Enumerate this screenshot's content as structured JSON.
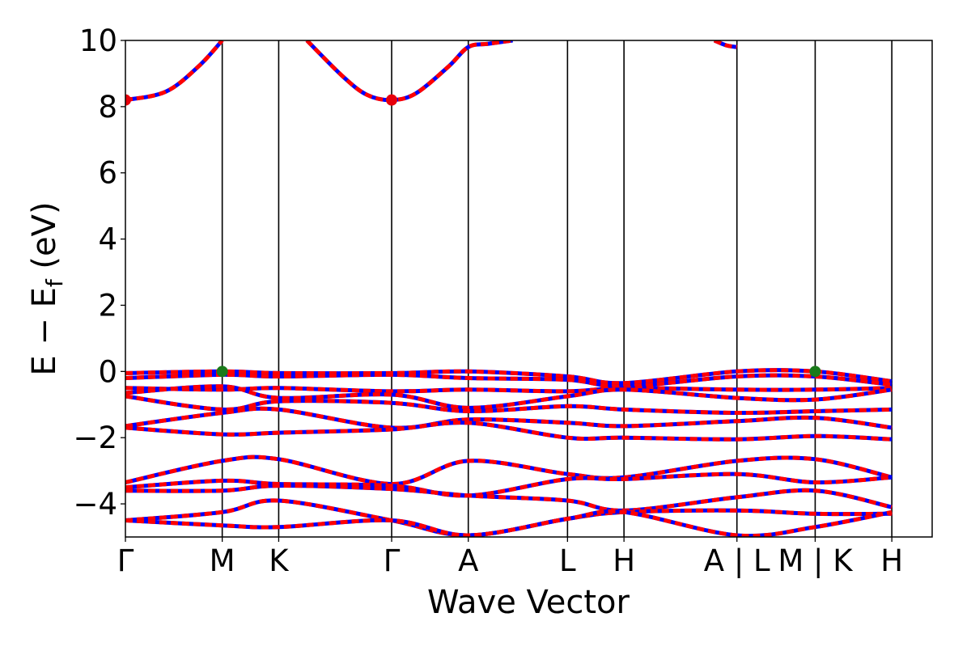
{
  "chart_data": {
    "type": "line",
    "title": "",
    "xlabel": "Wave Vector",
    "ylabel": "E − E_f (eV)",
    "ylabel_main": "E − E",
    "ylabel_sub": "f",
    "ylabel_unit": " (eV)",
    "ylim": [
      -5,
      10
    ],
    "yticks": [
      -4,
      -2,
      0,
      2,
      4,
      6,
      8,
      10
    ],
    "ytick_labels": [
      "−4",
      "−2",
      "0",
      "2",
      "4",
      "6",
      "8",
      "10"
    ],
    "x_range": [
      0,
      1
    ],
    "k_points": [
      {
        "x": 0.0,
        "label": "Γ"
      },
      {
        "x": 0.12,
        "label": "M"
      },
      {
        "x": 0.19,
        "label": "K"
      },
      {
        "x": 0.33,
        "label": "Γ"
      },
      {
        "x": 0.425,
        "label": "A"
      },
      {
        "x": 0.548,
        "label": "L"
      },
      {
        "x": 0.618,
        "label": "H"
      },
      {
        "x": 0.758,
        "label": "A | L"
      },
      {
        "x": 0.855,
        "label": "M | K"
      },
      {
        "x": 0.95,
        "label": "H"
      }
    ],
    "grid": false,
    "series_style": [
      {
        "color": "#ff0000",
        "dash": "solid"
      },
      {
        "color": "#0000ff",
        "dash": "dotted"
      }
    ],
    "bands": [
      {
        "points": [
          [
            0.0,
            8.2
          ],
          [
            0.05,
            8.45
          ],
          [
            0.09,
            9.2
          ],
          [
            0.12,
            10.0
          ]
        ]
      },
      {
        "points": [
          [
            0.225,
            10.0
          ],
          [
            0.27,
            8.9
          ],
          [
            0.3,
            8.35
          ],
          [
            0.33,
            8.2
          ],
          [
            0.36,
            8.4
          ],
          [
            0.4,
            9.2
          ],
          [
            0.425,
            9.8
          ],
          [
            0.45,
            9.9
          ],
          [
            0.48,
            10.0
          ]
        ]
      },
      {
        "points": [
          [
            0.73,
            10.0
          ],
          [
            0.745,
            9.85
          ],
          [
            0.758,
            9.8
          ]
        ]
      },
      {
        "points": [
          [
            0.0,
            -0.05
          ],
          [
            0.12,
            0.0
          ],
          [
            0.19,
            -0.05
          ],
          [
            0.33,
            -0.05
          ],
          [
            0.425,
            0.0
          ],
          [
            0.548,
            -0.15
          ],
          [
            0.618,
            -0.35
          ],
          [
            0.758,
            0.0
          ],
          [
            0.855,
            0.0
          ],
          [
            0.95,
            -0.3
          ]
        ]
      },
      {
        "points": [
          [
            0.0,
            -0.2
          ],
          [
            0.12,
            -0.1
          ],
          [
            0.19,
            -0.15
          ],
          [
            0.33,
            -0.1
          ],
          [
            0.425,
            -0.2
          ],
          [
            0.548,
            -0.25
          ],
          [
            0.618,
            -0.45
          ],
          [
            0.758,
            -0.15
          ],
          [
            0.855,
            -0.15
          ],
          [
            0.95,
            -0.4
          ]
        ]
      },
      {
        "points": [
          [
            0.0,
            -0.5
          ],
          [
            0.12,
            -0.55
          ],
          [
            0.19,
            -0.5
          ],
          [
            0.33,
            -0.6
          ],
          [
            0.425,
            -0.55
          ],
          [
            0.548,
            -0.6
          ],
          [
            0.618,
            -0.5
          ],
          [
            0.758,
            -0.55
          ],
          [
            0.855,
            -0.55
          ],
          [
            0.95,
            -0.5
          ]
        ]
      },
      {
        "points": [
          [
            0.0,
            -0.65
          ],
          [
            0.12,
            -0.45
          ],
          [
            0.19,
            -0.8
          ],
          [
            0.33,
            -0.7
          ],
          [
            0.425,
            -1.1
          ],
          [
            0.548,
            -0.75
          ],
          [
            0.618,
            -0.55
          ],
          [
            0.758,
            -0.8
          ],
          [
            0.855,
            -0.85
          ],
          [
            0.95,
            -0.55
          ]
        ]
      },
      {
        "points": [
          [
            0.0,
            -0.75
          ],
          [
            0.12,
            -1.15
          ],
          [
            0.19,
            -0.9
          ],
          [
            0.33,
            -0.95
          ],
          [
            0.425,
            -1.2
          ],
          [
            0.548,
            -1.05
          ],
          [
            0.618,
            -1.15
          ],
          [
            0.758,
            -1.25
          ],
          [
            0.855,
            -1.2
          ],
          [
            0.95,
            -1.15
          ]
        ]
      },
      {
        "points": [
          [
            0.0,
            -1.65
          ],
          [
            0.12,
            -1.25
          ],
          [
            0.19,
            -1.15
          ],
          [
            0.33,
            -1.7
          ],
          [
            0.425,
            -1.45
          ],
          [
            0.548,
            -1.55
          ],
          [
            0.618,
            -1.65
          ],
          [
            0.758,
            -1.5
          ],
          [
            0.855,
            -1.4
          ],
          [
            0.95,
            -1.7
          ]
        ]
      },
      {
        "points": [
          [
            0.0,
            -1.7
          ],
          [
            0.12,
            -1.9
          ],
          [
            0.19,
            -1.85
          ],
          [
            0.33,
            -1.75
          ],
          [
            0.425,
            -1.55
          ],
          [
            0.548,
            -2.0
          ],
          [
            0.618,
            -2.0
          ],
          [
            0.758,
            -2.05
          ],
          [
            0.855,
            -1.95
          ],
          [
            0.95,
            -2.05
          ]
        ]
      },
      {
        "points": [
          [
            0.0,
            -3.35
          ],
          [
            0.12,
            -2.7
          ],
          [
            0.19,
            -2.65
          ],
          [
            0.33,
            -3.4
          ],
          [
            0.425,
            -2.7
          ],
          [
            0.548,
            -3.1
          ],
          [
            0.618,
            -3.2
          ],
          [
            0.758,
            -2.7
          ],
          [
            0.855,
            -2.65
          ],
          [
            0.95,
            -3.2
          ]
        ]
      },
      {
        "points": [
          [
            0.0,
            -3.5
          ],
          [
            0.12,
            -3.3
          ],
          [
            0.19,
            -3.4
          ],
          [
            0.33,
            -3.45
          ],
          [
            0.425,
            -3.75
          ],
          [
            0.548,
            -3.25
          ],
          [
            0.618,
            -3.25
          ],
          [
            0.758,
            -3.1
          ],
          [
            0.855,
            -3.35
          ],
          [
            0.95,
            -3.2
          ]
        ]
      },
      {
        "points": [
          [
            0.0,
            -3.6
          ],
          [
            0.12,
            -3.6
          ],
          [
            0.19,
            -3.45
          ],
          [
            0.33,
            -3.55
          ],
          [
            0.425,
            -3.75
          ],
          [
            0.548,
            -3.9
          ],
          [
            0.618,
            -4.2
          ],
          [
            0.758,
            -3.8
          ],
          [
            0.855,
            -3.6
          ],
          [
            0.95,
            -4.1
          ]
        ]
      },
      {
        "points": [
          [
            0.0,
            -4.5
          ],
          [
            0.12,
            -4.25
          ],
          [
            0.19,
            -3.9
          ],
          [
            0.33,
            -4.5
          ],
          [
            0.425,
            -4.95
          ],
          [
            0.548,
            -4.45
          ],
          [
            0.618,
            -4.25
          ],
          [
            0.758,
            -4.2
          ],
          [
            0.855,
            -4.3
          ],
          [
            0.95,
            -4.3
          ]
        ]
      },
      {
        "points": [
          [
            0.0,
            -4.5
          ],
          [
            0.12,
            -4.65
          ],
          [
            0.19,
            -4.7
          ],
          [
            0.33,
            -4.5
          ],
          [
            0.425,
            -4.95
          ],
          [
            0.548,
            -4.45
          ],
          [
            0.618,
            -4.25
          ],
          [
            0.758,
            -4.95
          ],
          [
            0.855,
            -4.7
          ],
          [
            0.95,
            -4.25
          ]
        ]
      }
    ],
    "special_points": [
      {
        "x": 0.0,
        "y": 8.2,
        "color": "#e8000b"
      },
      {
        "x": 0.33,
        "y": 8.2,
        "color": "#e8000b"
      },
      {
        "x": 0.12,
        "y": 0.0,
        "color": "#1a7a1a"
      },
      {
        "x": 0.855,
        "y": 0.0,
        "color": "#1a7a1a"
      }
    ]
  }
}
